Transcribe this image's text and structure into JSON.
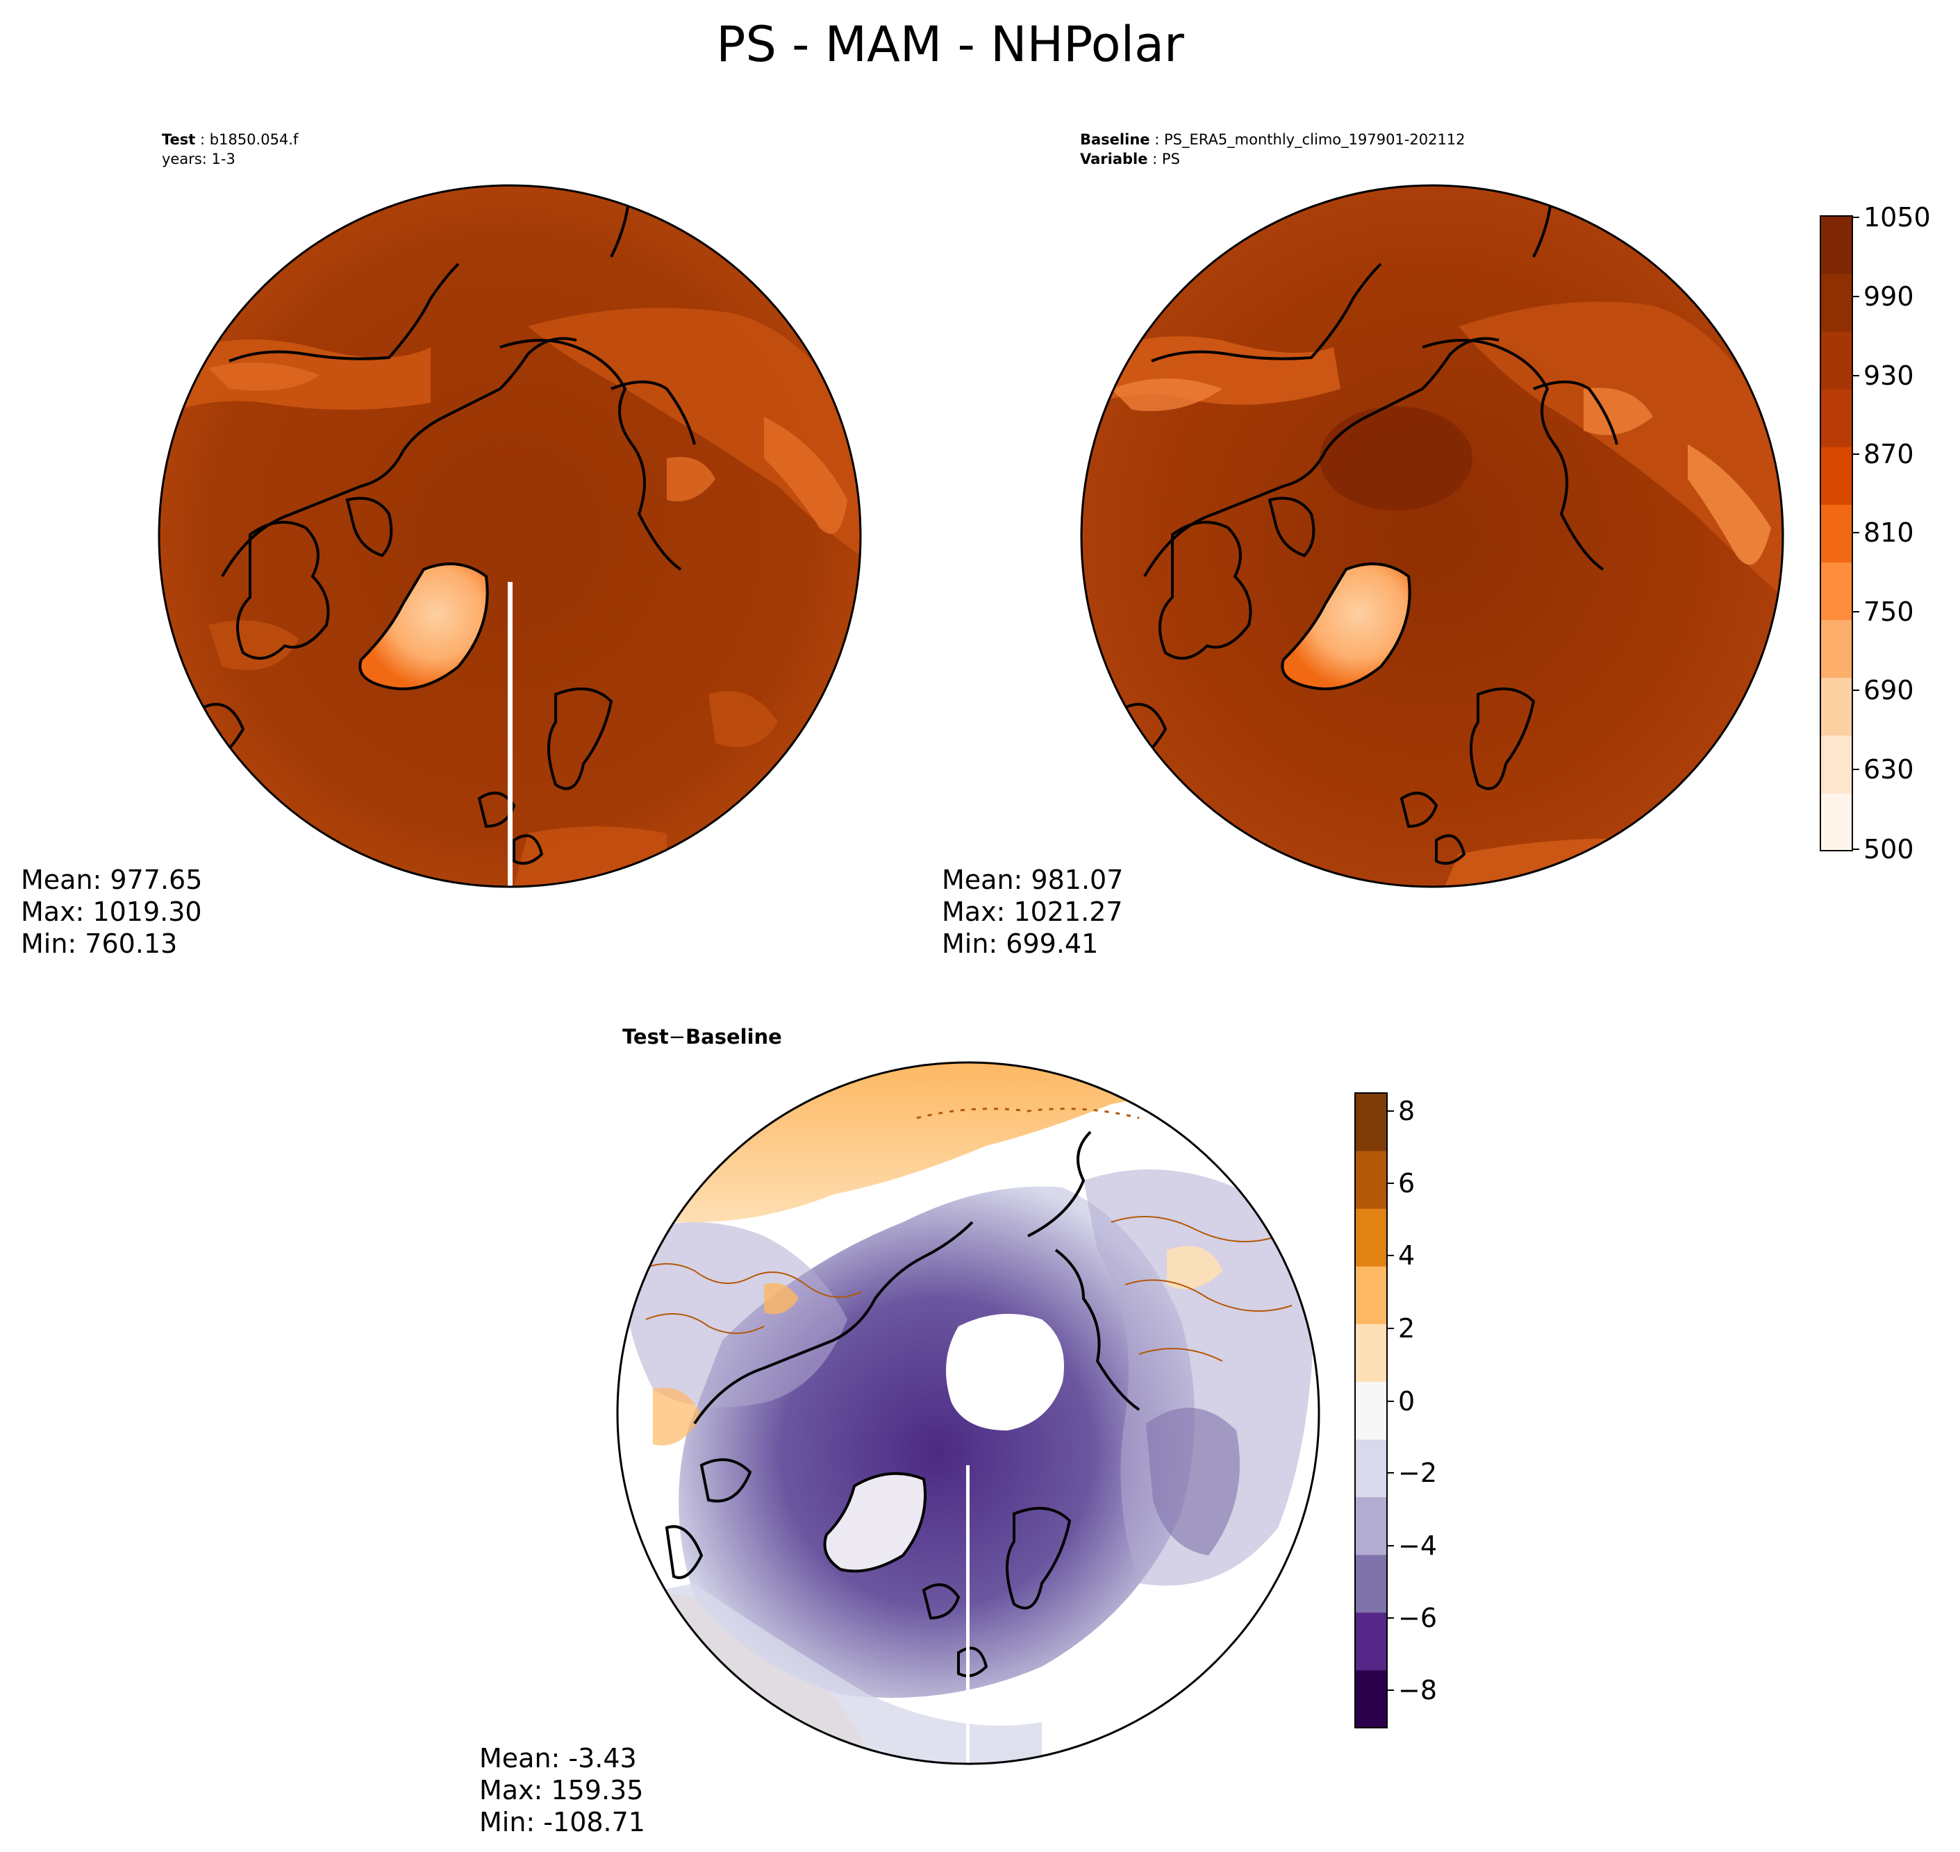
{
  "title": "PS - MAM - NHPolar",
  "panels": {
    "test": {
      "header_key": "Test",
      "header_value": "b1850.054.f",
      "header_line2": "years: 1-3",
      "stats": [
        "Mean: 977.65",
        "Max: 1019.30",
        "Min: 760.13"
      ]
    },
    "baseline": {
      "header_key": "Baseline",
      "header_value": "PS_ERA5_monthly_climo_197901-202112",
      "header_key2": "Variable",
      "header_value2": "PS",
      "stats": [
        "Mean: 981.07",
        "Max: 1021.27",
        "Min: 699.41"
      ]
    },
    "diff": {
      "header_left": "Test",
      "header_op": "−",
      "header_right": "Baseline",
      "stats": [
        "Mean: -3.43",
        "Max: 159.35",
        "Min: -108.71"
      ]
    }
  },
  "colorbars": {
    "main": {
      "min": 500,
      "max": 1050,
      "tick_labels": [
        "1050",
        "990",
        "930",
        "870",
        "810",
        "750",
        "690",
        "630",
        "500"
      ],
      "colormap": "Oranges",
      "colors": [
        "#fff5eb",
        "#fee6ce",
        "#fdd0a2",
        "#fdae6b",
        "#fd8d3c",
        "#f16913",
        "#d94801",
        "#b93c07",
        "#a63603",
        "#8f2f02",
        "#7f2704"
      ]
    },
    "diff": {
      "min": -9,
      "max": 8.5,
      "tick_labels": [
        "8",
        "6",
        "4",
        "2",
        "0",
        "−2",
        "−4",
        "−6",
        "−8"
      ],
      "colormap": "PuOr_r",
      "colors": [
        "#2d004b",
        "#542788",
        "#8073ac",
        "#b2abd2",
        "#d8daeb",
        "#f7f7f7",
        "#fee0b6",
        "#fdb863",
        "#e08214",
        "#b35806",
        "#7f3b08"
      ]
    }
  }
}
